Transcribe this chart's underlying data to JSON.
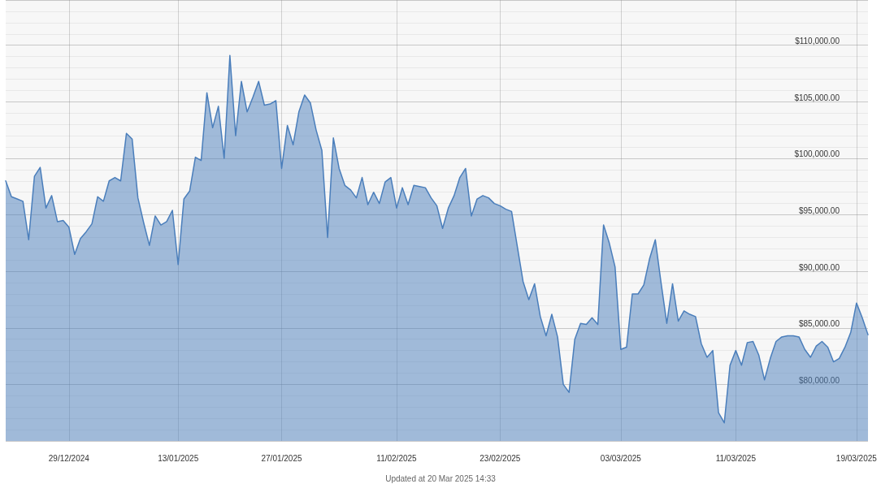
{
  "chart_data": {
    "type": "area",
    "color": "#4a7ebb",
    "categories": [
      null,
      null,
      null,
      null,
      null,
      null,
      null,
      null,
      null,
      null,
      null,
      "29/12/2024",
      null,
      null,
      null,
      null,
      null,
      null,
      null,
      null,
      null,
      null,
      null,
      null,
      null,
      null,
      null,
      null,
      null,
      null,
      "13/01/2025",
      null,
      null,
      null,
      null,
      null,
      null,
      null,
      null,
      null,
      null,
      null,
      null,
      null,
      null,
      null,
      null,
      null,
      "27/01/2025",
      null,
      null,
      null,
      null,
      null,
      null,
      null,
      null,
      null,
      null,
      null,
      null,
      null,
      null,
      null,
      null,
      null,
      null,
      null,
      "11/02/2025",
      null,
      null,
      null,
      null,
      null,
      null,
      null,
      null,
      null,
      null,
      null,
      null,
      null,
      null,
      null,
      null,
      null,
      "23/02/2025",
      null,
      null,
      null,
      null,
      null,
      null,
      null,
      null,
      null,
      null,
      null,
      null,
      null,
      null,
      null,
      null,
      null,
      null,
      null,
      null,
      "03/03/2025",
      null,
      null,
      null,
      null,
      null,
      null,
      null,
      null,
      null,
      null,
      null,
      null,
      null,
      null,
      null,
      null,
      null,
      null,
      null,
      "11/03/2025",
      null,
      null,
      null,
      null,
      null,
      null,
      null,
      null,
      null,
      null,
      null,
      null,
      null,
      null,
      null,
      null,
      null,
      null,
      null,
      null,
      "19/03/2025",
      null,
      null
    ],
    "values": [
      98000,
      96600,
      96400,
      96200,
      92800,
      98400,
      99200,
      95600,
      96700,
      94400,
      94500,
      93900,
      91500,
      92900,
      93500,
      94200,
      96600,
      96200,
      98000,
      98300,
      98000,
      102200,
      101700,
      96500,
      94300,
      92300,
      94900,
      94100,
      94400,
      95400,
      90600,
      96400,
      97100,
      100100,
      99800,
      105800,
      102700,
      104600,
      100000,
      109100,
      102000,
      106800,
      104100,
      105400,
      106800,
      104700,
      104800,
      105100,
      99100,
      102900,
      101200,
      104100,
      105600,
      104900,
      102500,
      100700,
      93000,
      101800,
      99100,
      97600,
      97200,
      96500,
      98300,
      95900,
      97000,
      96000,
      97900,
      98300,
      95600,
      97400,
      95900,
      97600,
      97500,
      97400,
      96500,
      95800,
      93800,
      95600,
      96700,
      98300,
      99100,
      94900,
      96400,
      96700,
      96500,
      96000,
      95800,
      95500,
      95300,
      92200,
      89100,
      87500,
      88900,
      86000,
      84300,
      86200,
      84200,
      80000,
      79300,
      84000,
      85400,
      85300,
      85900,
      85300,
      94100,
      92500,
      90400,
      83100,
      83300,
      88000,
      88000,
      88800,
      91100,
      92800,
      89000,
      85400,
      88900,
      85600,
      86500,
      86200,
      86000,
      83600,
      82400,
      83000,
      77500,
      76600,
      81700,
      83000,
      81700,
      83700,
      83800,
      82600,
      80400,
      82300,
      83800,
      84200,
      84300,
      84300,
      84200,
      83100,
      82400,
      83400,
      83800,
      83300,
      82000,
      82300,
      83300,
      84600,
      87200,
      85900,
      84400
    ],
    "ylim": [
      75000,
      114000
    ],
    "yticks": [
      {
        "value": 80000,
        "label": "$80,000.00"
      },
      {
        "value": 85000,
        "label": "$85,000.00"
      },
      {
        "value": 90000,
        "label": "$90,000.00"
      },
      {
        "value": 95000,
        "label": "$95,000.00"
      },
      {
        "value": 100000,
        "label": "$100,000.00"
      },
      {
        "value": 105000,
        "label": "$105,000.00"
      },
      {
        "value": 110000,
        "label": "$110,000.00"
      }
    ],
    "grid": true,
    "marker": "none",
    "line_style": "solid",
    "annotations": [
      "Updated at 20 Mar 2025 14:33"
    ]
  }
}
